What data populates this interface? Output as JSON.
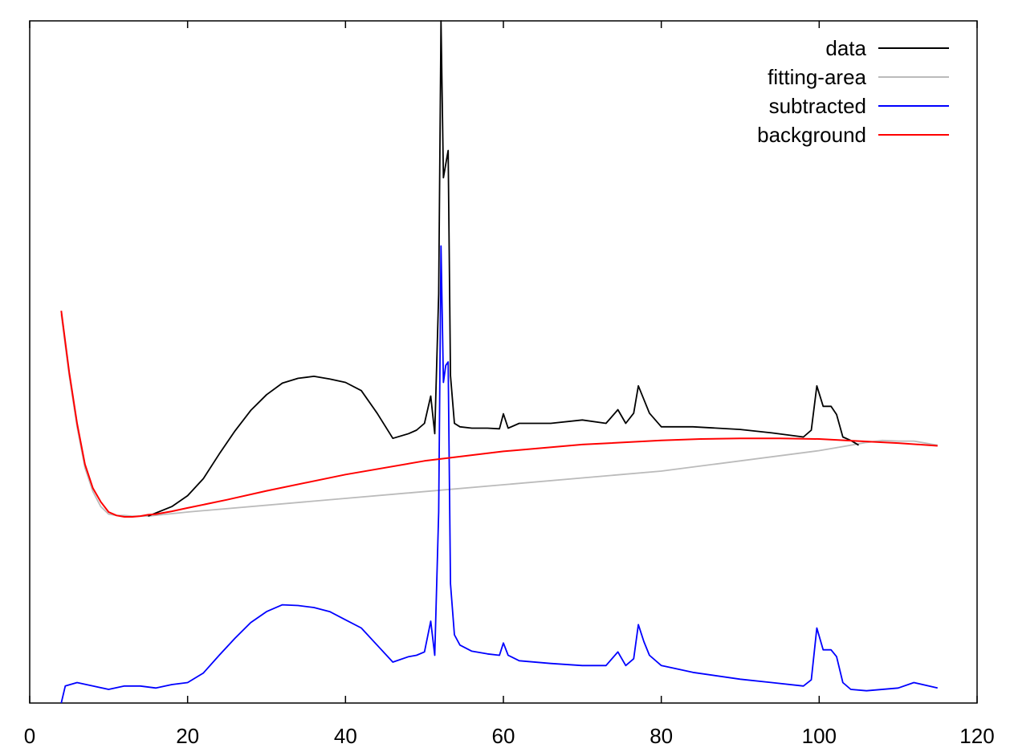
{
  "chart_data": {
    "type": "line",
    "title": "",
    "xlabel": "",
    "ylabel": "",
    "xlim": [
      0,
      120
    ],
    "ylim": [
      0,
      100
    ],
    "grid": false,
    "y_tick_labels_shown": false,
    "legend_position": "top-right",
    "x_ticks": [
      0,
      20,
      40,
      60,
      80,
      100,
      120
    ],
    "x_tick_labels": [
      "0",
      "20",
      "40",
      "60",
      "80",
      "100",
      "120"
    ],
    "colors": {
      "data": "#000000",
      "fitting-area": "#bbbbbb",
      "subtracted": "#0000ff",
      "background": "#ff0000"
    },
    "legend": [
      "data",
      "fitting-area",
      "subtracted",
      "background"
    ],
    "series": [
      {
        "name": "data",
        "color": "#000000",
        "x": [
          15,
          18,
          20,
          22,
          24,
          26,
          28,
          30,
          32,
          34,
          36,
          38,
          40,
          42,
          44,
          46,
          48,
          49,
          50,
          50.8,
          51.3,
          51.8,
          52.1,
          52.4,
          52.7,
          53.0,
          53.3,
          53.8,
          54.5,
          56,
          58,
          59.5,
          60,
          60.6,
          62,
          66,
          70,
          73,
          74.5,
          75.5,
          76.5,
          77.1,
          77.8,
          78.5,
          80,
          84,
          90,
          94,
          98,
          99,
          99.7,
          100.5,
          101.5,
          102.2,
          103,
          104,
          105
        ],
        "y": [
          27.4,
          28.8,
          30.4,
          32.9,
          36.5,
          39.9,
          42.9,
          45.2,
          46.9,
          47.6,
          47.9,
          47.5,
          47.0,
          45.8,
          42.5,
          38.8,
          39.5,
          40.0,
          41.0,
          45.0,
          39.5,
          60.0,
          100.0,
          77.0,
          79.0,
          81.0,
          48.0,
          41.0,
          40.5,
          40.3,
          40.3,
          40.2,
          42.4,
          40.3,
          41.0,
          41.0,
          41.5,
          41.0,
          43.0,
          41.0,
          42.5,
          46.5,
          44.5,
          42.5,
          40.5,
          40.5,
          40.1,
          39.6,
          39.0,
          40.0,
          46.5,
          43.5,
          43.5,
          42.3,
          39.0,
          38.5,
          37.8
        ]
      },
      {
        "name": "fitting-area",
        "color": "#bbbbbb",
        "x": [
          4,
          5,
          6,
          7,
          8,
          9,
          10,
          11,
          12,
          13,
          14,
          15,
          20,
          40,
          60,
          80,
          100,
          104,
          106,
          108,
          110,
          112,
          115
        ],
        "y": [
          57.0,
          48.0,
          40.5,
          34.5,
          31.0,
          28.8,
          27.7,
          27.5,
          27.5,
          27.4,
          27.4,
          27.4,
          28.0,
          30.0,
          32.0,
          34.0,
          37.0,
          37.8,
          38.2,
          38.5,
          38.4,
          38.4,
          37.8
        ]
      },
      {
        "name": "subtracted",
        "color": "#0000ff",
        "x": [
          4,
          4.5,
          6,
          8,
          10,
          12,
          14,
          16,
          18,
          20,
          22,
          24,
          26,
          28,
          30,
          32,
          34,
          36,
          38,
          40,
          42,
          44,
          46,
          48,
          49,
          50,
          50.8,
          51.3,
          51.8,
          52.1,
          52.4,
          52.7,
          53.0,
          53.3,
          53.8,
          54.5,
          56,
          58,
          59.5,
          60,
          60.6,
          62,
          66,
          70,
          73,
          74.5,
          75.5,
          76.5,
          77.1,
          77.8,
          78.5,
          80,
          84,
          90,
          94,
          98,
          99,
          99.7,
          100.5,
          101.5,
          102.2,
          103,
          104,
          106,
          110,
          112,
          115
        ],
        "y": [
          0.0,
          2.5,
          3.0,
          2.5,
          2.0,
          2.5,
          2.5,
          2.2,
          2.7,
          3.0,
          4.4,
          7.0,
          9.5,
          11.8,
          13.4,
          14.4,
          14.3,
          14.0,
          13.4,
          12.2,
          11.0,
          8.5,
          6.0,
          6.8,
          7.0,
          7.5,
          12.0,
          7.0,
          28.0,
          67.0,
          47.0,
          49.5,
          50.0,
          17.5,
          10.0,
          8.5,
          7.6,
          7.2,
          7.0,
          8.8,
          7.0,
          6.2,
          5.8,
          5.5,
          5.5,
          7.5,
          5.5,
          6.5,
          11.5,
          9.0,
          7.0,
          5.5,
          4.5,
          3.5,
          3.0,
          2.5,
          3.4,
          11.0,
          7.8,
          7.8,
          6.8,
          3.0,
          2.0,
          1.8,
          2.2,
          3.0,
          2.2
        ]
      },
      {
        "name": "background",
        "color": "#ff0000",
        "x": [
          4,
          5,
          6,
          7,
          8,
          9,
          10,
          11,
          12,
          13,
          14,
          15,
          16,
          18,
          20,
          25,
          30,
          40,
          50,
          60,
          70,
          80,
          85,
          90,
          95,
          100,
          105,
          110,
          115
        ],
        "y": [
          57.5,
          48.5,
          41.0,
          35.0,
          31.5,
          29.5,
          28.0,
          27.5,
          27.3,
          27.3,
          27.4,
          27.6,
          27.7,
          28.1,
          28.6,
          29.8,
          31.1,
          33.5,
          35.5,
          36.9,
          37.9,
          38.5,
          38.7,
          38.8,
          38.8,
          38.7,
          38.4,
          38.1,
          37.7
        ]
      }
    ]
  }
}
